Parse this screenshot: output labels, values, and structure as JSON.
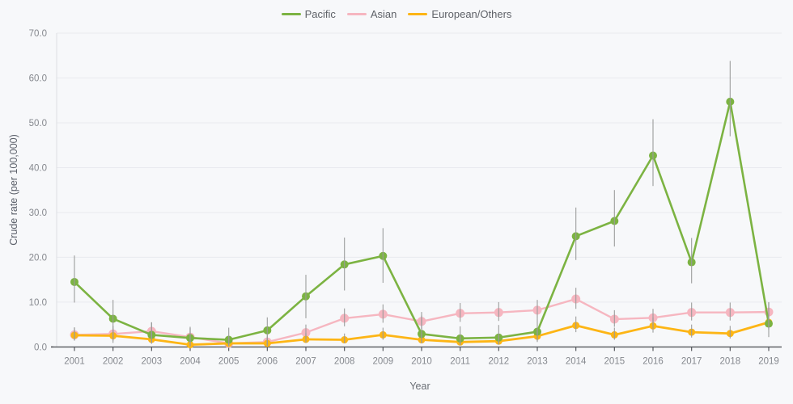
{
  "palette": {
    "background": "#f7f8fa",
    "gridline": "#e9eaef",
    "axis_line": "#55575c",
    "y_axis_line": "#dcdee3",
    "tick_text": "#85888e",
    "error_bar": "#9b9b9b",
    "pacific": "#7cb342",
    "asian": "#f6b6c0",
    "european": "#fdb515"
  },
  "chart_data": {
    "type": "line",
    "title": "",
    "xlabel": "Year",
    "ylabel": "Crude rate (per 100,000)",
    "ylim": [
      0,
      70
    ],
    "yticks": [
      0,
      10,
      20,
      30,
      40,
      50,
      60,
      70
    ],
    "ytick_labels": [
      "0.0",
      "10.0",
      "20.0",
      "30.0",
      "40.0",
      "50.0",
      "60.0",
      "70.0"
    ],
    "grid": "horizontal",
    "legend_position": "top-center",
    "error_bars": true,
    "x": [
      2001,
      2002,
      2003,
      2004,
      2005,
      2006,
      2007,
      2008,
      2009,
      2010,
      2011,
      2012,
      2013,
      2014,
      2015,
      2016,
      2017,
      2018,
      2019
    ],
    "series": [
      {
        "name": "Pacific",
        "color": "#7cb342",
        "values": [
          14.5,
          6.3,
          2.7,
          2.0,
          1.6,
          3.7,
          11.3,
          18.4,
          20.3,
          2.9,
          1.9,
          2.1,
          3.4,
          24.7,
          28.1,
          42.7,
          18.9,
          54.7,
          5.2
        ],
        "ci_low": [
          9.9,
          0.9,
          0.7,
          0.3,
          0.2,
          0.6,
          6.4,
          12.6,
          14.3,
          0.8,
          0.4,
          0.5,
          1.1,
          19.4,
          22.4,
          35.9,
          14.2,
          47.0,
          2.2
        ],
        "ci_high": [
          20.4,
          10.5,
          5.5,
          4.5,
          4.3,
          6.6,
          16.1,
          24.4,
          26.5,
          7.0,
          4.6,
          4.9,
          6.3,
          31.1,
          35.0,
          50.8,
          24.3,
          63.8,
          9.9
        ]
      },
      {
        "name": "Asian",
        "color": "#f6b6c0",
        "values": [
          2.7,
          2.9,
          3.5,
          2.2,
          0.8,
          1.1,
          3.2,
          6.4,
          7.3,
          5.7,
          7.5,
          7.7,
          8.2,
          10.7,
          6.2,
          6.5,
          7.7,
          7.7,
          7.8
        ],
        "ci_low": [
          1.4,
          1.6,
          2.0,
          1.0,
          0.2,
          0.4,
          2.0,
          4.6,
          5.4,
          4.0,
          5.6,
          5.8,
          6.3,
          8.5,
          4.5,
          4.8,
          5.9,
          5.9,
          6.0
        ],
        "ci_high": [
          4.4,
          4.7,
          5.5,
          4.2,
          2.4,
          2.7,
          5.0,
          8.6,
          9.5,
          7.8,
          9.8,
          10.0,
          10.5,
          13.2,
          8.2,
          8.5,
          9.9,
          9.9,
          10.0
        ]
      },
      {
        "name": "European/Others",
        "color": "#fdb515",
        "values": [
          2.6,
          2.5,
          1.7,
          0.5,
          0.8,
          0.8,
          1.7,
          1.6,
          2.7,
          1.6,
          1.1,
          1.3,
          2.4,
          4.8,
          2.7,
          4.7,
          3.3,
          3.0,
          5.5
        ],
        "ci_low": [
          1.5,
          1.4,
          0.8,
          0.1,
          0.2,
          0.2,
          0.9,
          0.8,
          1.6,
          0.8,
          0.4,
          0.6,
          1.4,
          3.3,
          1.6,
          3.2,
          2.1,
          1.9,
          3.9
        ],
        "ci_high": [
          4.2,
          4.1,
          3.2,
          1.8,
          2.2,
          2.2,
          3.1,
          3.0,
          4.3,
          3.0,
          2.4,
          2.7,
          4.0,
          6.8,
          4.3,
          6.6,
          5.0,
          4.7,
          7.5
        ]
      }
    ]
  }
}
